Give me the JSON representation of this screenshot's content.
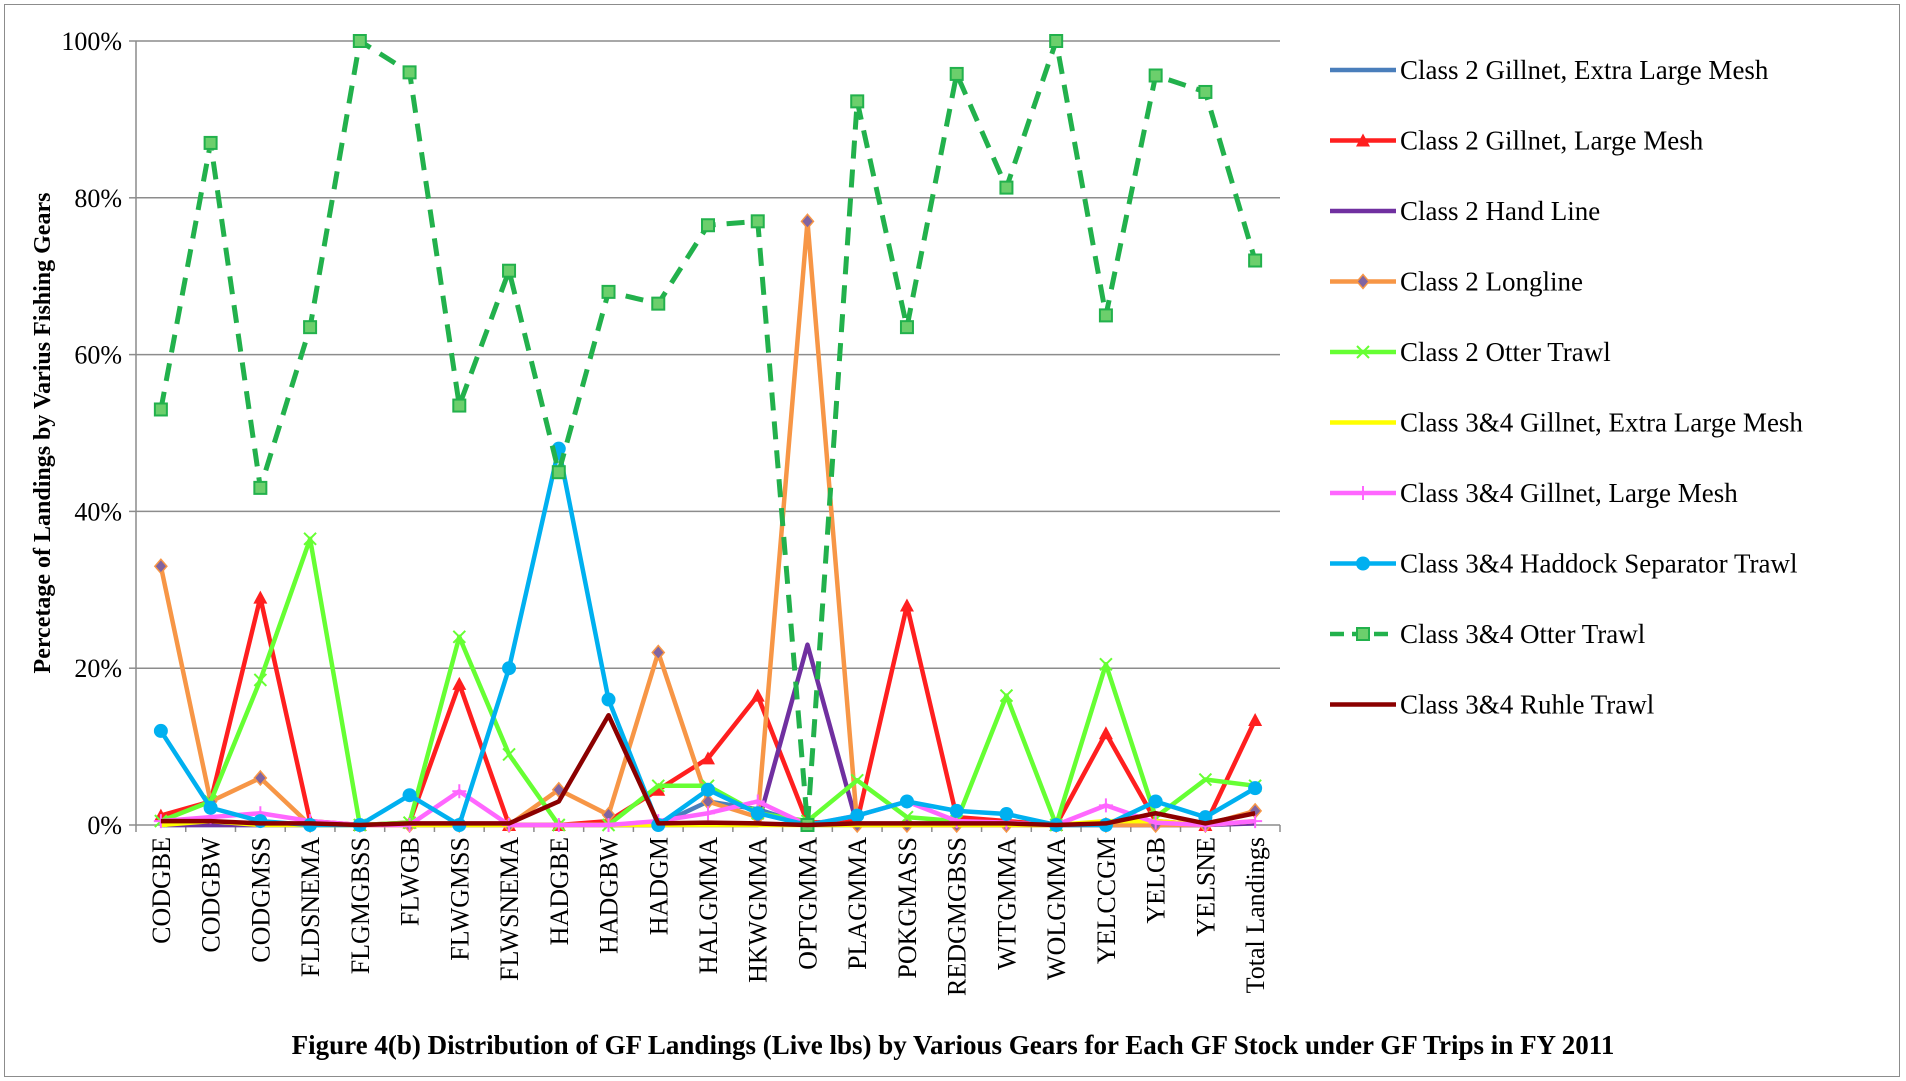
{
  "chart_data": {
    "type": "line",
    "title": "",
    "xlabel": "",
    "ylabel": "Percetage of Landings by Varius Fishing Gears",
    "ylim": [
      0,
      100
    ],
    "y_ticks": [
      "0%",
      "20%",
      "40%",
      "60%",
      "80%",
      "100%"
    ],
    "grid": true,
    "legend_position": "right",
    "categories": [
      "CODGBE",
      "CODGBW",
      "CODGMSS",
      "FLDSNEMA",
      "FLGMGBSS",
      "FLWGB",
      "FLWGMSS",
      "FLWSNEMA",
      "HADGBE",
      "HADGBW",
      "HADGM",
      "HALGMMA",
      "HKWGMMA",
      "OPTGMMA",
      "PLAGMMA",
      "POKGMASS",
      "REDGMGBSS",
      "WITGMMA",
      "WOLGMMA",
      "YELCCGM",
      "YELGB",
      "YELSNE",
      "Total Landings"
    ],
    "series": [
      {
        "name": "Class 2 Gillnet, Extra Large Mesh",
        "color": "#4a7ebb",
        "marker": "none",
        "dash": false,
        "values": [
          0,
          0,
          0,
          0,
          0,
          0,
          0,
          0,
          0,
          0,
          0,
          3,
          2,
          0,
          0,
          0,
          0,
          0,
          0,
          0,
          0,
          0,
          0.3
        ]
      },
      {
        "name": "Class 2 Gillnet, Large Mesh",
        "color": "#ff1f1f",
        "marker": "triangle",
        "dash": false,
        "values": [
          1.2,
          3,
          29,
          0.5,
          0,
          0.3,
          18,
          0,
          0,
          0.5,
          4.5,
          8.5,
          16.5,
          0.3,
          0.5,
          28,
          1,
          0.5,
          0,
          11.7,
          0.5,
          0,
          13.4
        ]
      },
      {
        "name": "Class 2 Hand Line",
        "color": "#7030a0",
        "marker": "none",
        "dash": false,
        "values": [
          0,
          0,
          0,
          0,
          0,
          0,
          0,
          0,
          0,
          0,
          0,
          0,
          0,
          23,
          0,
          0,
          0,
          0,
          0,
          0,
          0,
          0,
          0.2
        ]
      },
      {
        "name": "Class 2 Longline",
        "color": "#f79646",
        "marker": "diamond",
        "dash": false,
        "values": [
          33,
          3,
          6,
          0,
          0,
          0,
          0,
          0,
          4.5,
          1.3,
          22,
          3,
          1,
          77,
          0,
          0,
          0,
          0,
          0,
          0,
          0,
          0,
          1.8
        ]
      },
      {
        "name": "Class 2 Otter Trawl",
        "color": "#66ff33",
        "marker": "x",
        "dash": false,
        "values": [
          0.5,
          3,
          18.5,
          36.5,
          0,
          0.3,
          24,
          9,
          0,
          0,
          5,
          5,
          1.5,
          0.5,
          5.7,
          1,
          0.5,
          16.5,
          0,
          20.5,
          1,
          5.8,
          5
        ]
      },
      {
        "name": "Class 3&4 Gillnet, Extra Large Mesh",
        "color": "#ffff00",
        "marker": "none",
        "dash": false,
        "values": [
          0,
          0.5,
          0,
          0,
          0,
          0,
          0,
          0,
          0,
          0,
          0,
          0,
          0,
          0,
          0,
          0,
          0,
          0,
          0,
          0.5,
          0.5,
          0,
          0.5
        ]
      },
      {
        "name": "Class 3&4 Gillnet, Large Mesh",
        "color": "#ff66ff",
        "marker": "plus",
        "dash": false,
        "values": [
          0.5,
          1,
          1.5,
          0.5,
          0,
          0,
          4.3,
          0,
          0,
          0,
          0.5,
          1.5,
          3,
          0,
          1.2,
          3,
          0.5,
          0.3,
          0,
          2.5,
          0.3,
          0,
          0.5
        ]
      },
      {
        "name": "Class 3&4 Haddock Separator Trawl",
        "color": "#00b0f0",
        "marker": "circle",
        "dash": false,
        "values": [
          12,
          2.2,
          0.5,
          0,
          0,
          3.8,
          0,
          20,
          48,
          16,
          0,
          4.5,
          1.5,
          0,
          1.2,
          3,
          1.8,
          1.4,
          0,
          0,
          3,
          1,
          4.7
        ]
      },
      {
        "name": "Class 3&4 Otter Trawl",
        "color": "#22b14c",
        "marker": "square",
        "dash": true,
        "values": [
          53,
          87,
          43,
          63.5,
          100,
          96,
          53.5,
          70.7,
          45,
          68,
          66.5,
          76.5,
          77,
          0,
          92.3,
          63.5,
          95.8,
          81.3,
          100,
          65,
          95.6,
          93.5,
          72
        ]
      },
      {
        "name": "Class 3&4 Ruhle Trawl",
        "color": "#8b0000",
        "marker": "none",
        "dash": false,
        "values": [
          0.5,
          0.5,
          0.2,
          0.2,
          0,
          0.2,
          0.2,
          0.2,
          3,
          14,
          0.2,
          0.3,
          0.2,
          0,
          0.2,
          0.2,
          0.2,
          0.2,
          0,
          0.2,
          1.5,
          0.2,
          1.5
        ]
      }
    ]
  },
  "caption": "Figure 4(b) Distribution of GF Landings (Live lbs) by Various Gears for Each GF Stock under GF Trips in FY 2011"
}
